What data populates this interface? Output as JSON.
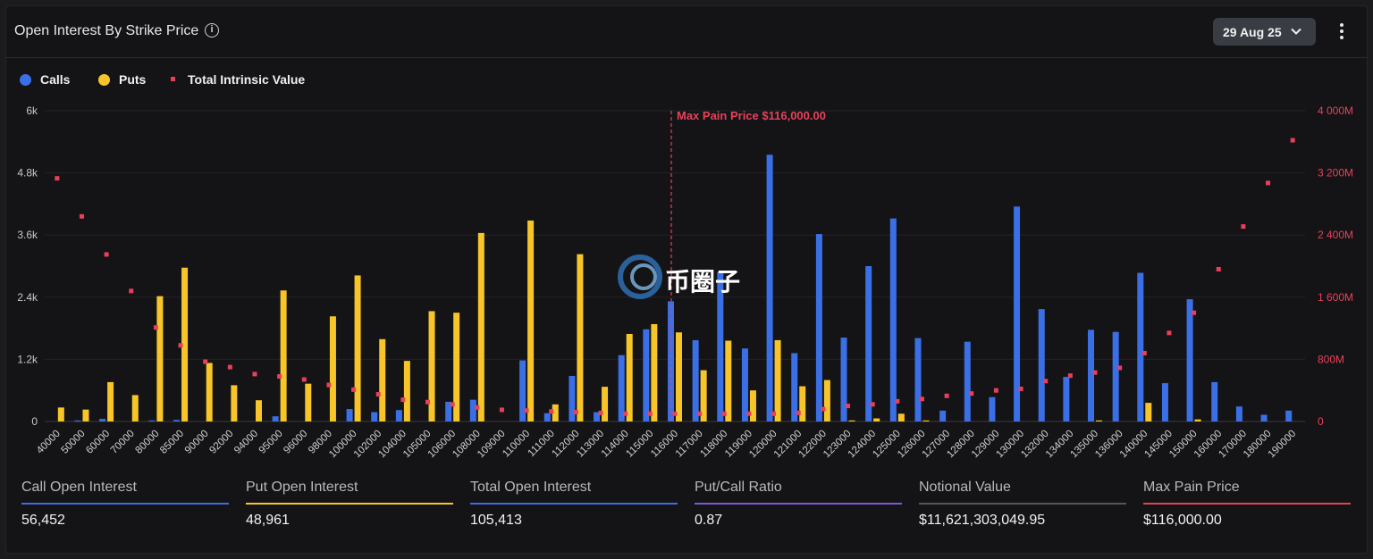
{
  "header": {
    "title": "Open Interest By Strike Price",
    "date": "29 Aug 25"
  },
  "legend": {
    "calls": "Calls",
    "puts": "Puts",
    "intrinsic": "Total Intrinsic Value"
  },
  "colors": {
    "calls": "#3b6fe6",
    "puts": "#f7c52a",
    "intrinsic": "#e8405a",
    "ratio": "#7b57d9",
    "notional": "#55565c"
  },
  "watermark": {
    "text": "币圈子"
  },
  "chart_data": {
    "type": "bar",
    "max_pain_label": "Max Pain Price $116,000.00",
    "max_pain_strike": "116000",
    "categories": [
      "40000",
      "50000",
      "60000",
      "70000",
      "80000",
      "85000",
      "90000",
      "92000",
      "94000",
      "95000",
      "96000",
      "98000",
      "100000",
      "102000",
      "104000",
      "105000",
      "106000",
      "108000",
      "109000",
      "110000",
      "111000",
      "112000",
      "113000",
      "114000",
      "115000",
      "116000",
      "117000",
      "118000",
      "119000",
      "120000",
      "121000",
      "122000",
      "123000",
      "124000",
      "125000",
      "126000",
      "127000",
      "128000",
      "129000",
      "130000",
      "132000",
      "134000",
      "135000",
      "136000",
      "140000",
      "145000",
      "150000",
      "160000",
      "170000",
      "180000",
      "190000"
    ],
    "y_left": {
      "ylim": [
        0,
        6000
      ],
      "ticks": [
        0,
        1200,
        2400,
        3600,
        4800,
        6000
      ],
      "tick_labels": [
        "0",
        "1.2k",
        "2.4k",
        "3.6k",
        "4.8k",
        "6k"
      ]
    },
    "y_right": {
      "ylim": [
        0,
        4000
      ],
      "ticks": [
        0,
        800,
        1600,
        2400,
        3200,
        4000
      ],
      "tick_labels": [
        "0",
        "800M",
        "1 600M",
        "2 400M",
        "3 200M",
        "4 000M"
      ]
    },
    "series": [
      {
        "name": "Calls",
        "axis": "left",
        "values": [
          0,
          20,
          50,
          0,
          20,
          30,
          0,
          0,
          0,
          100,
          0,
          0,
          240,
          180,
          220,
          0,
          380,
          420,
          0,
          1180,
          160,
          880,
          180,
          1280,
          1780,
          2320,
          1570,
          2880,
          1410,
          5150,
          1320,
          3620,
          1620,
          3000,
          3920,
          1610,
          210,
          1540,
          470,
          4150,
          2170,
          860,
          1770,
          1730,
          2870,
          740,
          2360,
          760,
          290,
          130,
          210
        ]
      },
      {
        "name": "Puts",
        "axis": "left",
        "values": [
          270,
          230,
          760,
          510,
          2420,
          2970,
          1130,
          700,
          410,
          2530,
          730,
          2030,
          2820,
          1590,
          1170,
          2130,
          2100,
          3640,
          0,
          3880,
          330,
          3230,
          670,
          1690,
          1880,
          1720,
          990,
          1560,
          600,
          1570,
          680,
          800,
          20,
          60,
          150,
          20,
          0,
          0,
          0,
          0,
          0,
          0,
          20,
          0,
          360,
          0,
          40,
          0,
          0,
          0,
          0
        ]
      },
      {
        "name": "Total Intrinsic Value",
        "axis": "right",
        "values": [
          3130,
          2640,
          2150,
          1680,
          1210,
          980,
          770,
          700,
          610,
          580,
          540,
          470,
          410,
          350,
          280,
          250,
          220,
          180,
          150,
          140,
          130,
          120,
          110,
          100,
          100,
          100,
          100,
          100,
          100,
          100,
          110,
          160,
          200,
          220,
          260,
          290,
          330,
          360,
          400,
          420,
          520,
          590,
          630,
          690,
          880,
          1140,
          1400,
          1960,
          2510,
          3070,
          3620
        ]
      }
    ]
  },
  "stats": [
    {
      "label": "Call Open Interest",
      "value": "56,452"
    },
    {
      "label": "Put Open Interest",
      "value": "48,961"
    },
    {
      "label": "Total Open Interest",
      "value": "105,413"
    },
    {
      "label": "Put/Call Ratio",
      "value": "0.87"
    },
    {
      "label": "Notional Value",
      "value": "$11,621,303,049.95"
    },
    {
      "label": "Max Pain Price",
      "value": "$116,000.00"
    }
  ]
}
